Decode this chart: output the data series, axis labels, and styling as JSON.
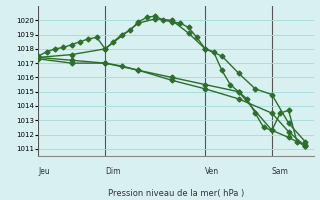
{
  "background_color": "#d8f0f0",
  "grid_color": "#aadddd",
  "line_color": "#2d6e2d",
  "marker_size": 2.5,
  "line_width": 1.0,
  "xlabel_text": "Pression niveau de la mer( hPa )",
  "ylim": [
    1010.5,
    1021.0
  ],
  "yticks": [
    1011,
    1012,
    1013,
    1014,
    1015,
    1016,
    1017,
    1018,
    1019,
    1020
  ],
  "day_labels": [
    "Jeu",
    "Dim",
    "Ven",
    "Sam"
  ],
  "day_positions": [
    0,
    8,
    20,
    28
  ],
  "xlim": [
    0,
    33
  ],
  "series1_x": [
    0,
    1,
    2,
    3,
    4,
    5,
    6,
    7,
    8,
    9,
    10,
    11,
    12,
    13,
    14,
    15,
    16,
    17,
    18,
    19,
    20,
    21,
    22,
    23,
    24,
    25,
    26,
    27,
    28,
    29,
    30,
    31,
    32
  ],
  "series1_y": [
    1017.5,
    1017.8,
    1018.0,
    1018.1,
    1018.3,
    1018.5,
    1018.7,
    1018.8,
    1018.0,
    1018.5,
    1019.0,
    1019.3,
    1019.9,
    1020.2,
    1020.3,
    1020.0,
    1019.9,
    1019.8,
    1019.5,
    1018.8,
    1018.0,
    1017.8,
    1016.5,
    1015.5,
    1015.0,
    1014.5,
    1013.5,
    1012.5,
    1012.3,
    1013.5,
    1013.7,
    1011.5,
    1011.3
  ],
  "series2_x": [
    0,
    4,
    8,
    12,
    14,
    16,
    18,
    20,
    22,
    24,
    26,
    28,
    30,
    32
  ],
  "series2_y": [
    1017.4,
    1017.6,
    1018.0,
    1019.8,
    1020.1,
    1020.0,
    1019.1,
    1018.0,
    1017.5,
    1016.3,
    1015.2,
    1014.8,
    1012.8,
    1011.5
  ],
  "series3_x": [
    0,
    4,
    8,
    10,
    12,
    16,
    20,
    24,
    28,
    30,
    32
  ],
  "series3_y": [
    1017.3,
    1017.0,
    1017.0,
    1016.8,
    1016.5,
    1016.0,
    1015.5,
    1015.0,
    1012.3,
    1011.8,
    1011.2
  ],
  "series4_x": [
    0,
    4,
    8,
    12,
    16,
    20,
    24,
    28,
    30,
    32
  ],
  "series4_y": [
    1017.4,
    1017.2,
    1017.0,
    1016.5,
    1015.8,
    1015.2,
    1014.5,
    1013.5,
    1012.2,
    1011.2
  ]
}
